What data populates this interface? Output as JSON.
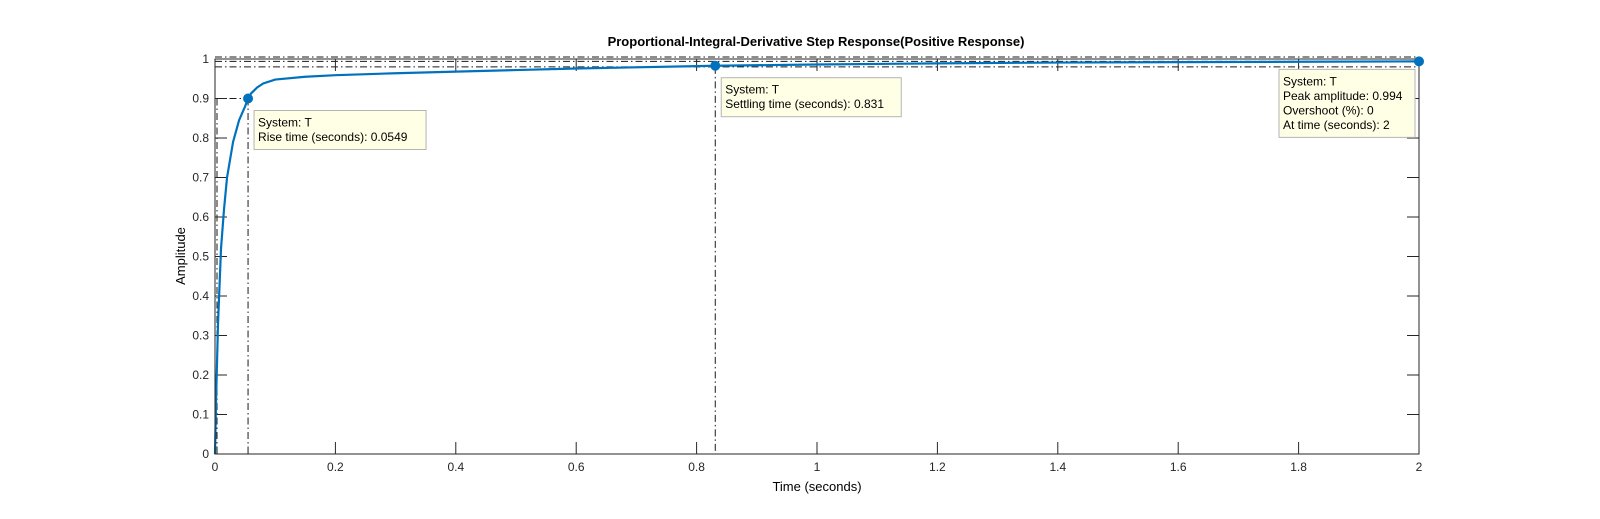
{
  "chart_data": {
    "type": "line",
    "title": "Proportional-Integral-Derivative Step Response(Positive Response)",
    "xlabel": "Time (seconds)",
    "ylabel": "Amplitude",
    "xlim": [
      0,
      2
    ],
    "ylim": [
      0,
      1
    ],
    "xticks": [
      0,
      0.2,
      0.4,
      0.6,
      0.8,
      1,
      1.2,
      1.4,
      1.6,
      1.8,
      2
    ],
    "xtick_labels": [
      "0",
      "0.2",
      "0.4",
      "0.6",
      "0.8",
      "1",
      "1.2",
      "1.4",
      "1.6",
      "1.8",
      "2"
    ],
    "yticks": [
      0,
      0.1,
      0.2,
      0.3,
      0.4,
      0.5,
      0.6,
      0.7,
      0.8,
      0.9,
      1
    ],
    "ytick_labels": [
      "0",
      "0.1",
      "0.2",
      "0.3",
      "0.4",
      "0.5",
      "0.6",
      "0.7",
      "0.8",
      "0.9",
      "1"
    ],
    "grid": false,
    "line_color": "#0072BD",
    "series": [
      {
        "x": [
          0,
          0.002,
          0.005,
          0.01,
          0.015,
          0.02,
          0.03,
          0.04,
          0.05,
          0.0549,
          0.06,
          0.07,
          0.08,
          0.1,
          0.15,
          0.2,
          0.3,
          0.4,
          0.5,
          0.6,
          0.7,
          0.8,
          0.831,
          1,
          1.2,
          1.4,
          1.6,
          1.8,
          2
        ],
        "values": [
          0,
          0.15,
          0.33,
          0.52,
          0.62,
          0.7,
          0.79,
          0.845,
          0.88,
          0.9,
          0.913,
          0.928,
          0.938,
          0.948,
          0.955,
          0.959,
          0.964,
          0.968,
          0.972,
          0.976,
          0.979,
          0.982,
          0.983,
          0.986,
          0.989,
          0.991,
          0.992,
          0.993,
          0.994
        ]
      }
    ],
    "reference_lines": {
      "rise_x": 0.0549,
      "rise_level": 0.9,
      "settling_x": 0.831,
      "settling_band": [
        0.98,
        1.0
      ],
      "peak_x": 2,
      "peak_y": 0.994
    },
    "annotations": [
      {
        "id": "rise",
        "x": 0.0549,
        "y": 0.9,
        "lines": [
          "System: T",
          "Rise time (seconds): 0.0549"
        ]
      },
      {
        "id": "settling",
        "x": 0.831,
        "y": 0.983,
        "lines": [
          "System: T",
          "Settling time (seconds): 0.831"
        ]
      },
      {
        "id": "peak",
        "x": 2,
        "y": 0.994,
        "lines": [
          "System: T",
          "Peak amplitude: 0.994",
          "Overshoot (%): 0",
          "At time (seconds): 2"
        ]
      }
    ],
    "tooltip_fill": "#FFFFE5",
    "tooltip_border": "#B4B4B4"
  }
}
